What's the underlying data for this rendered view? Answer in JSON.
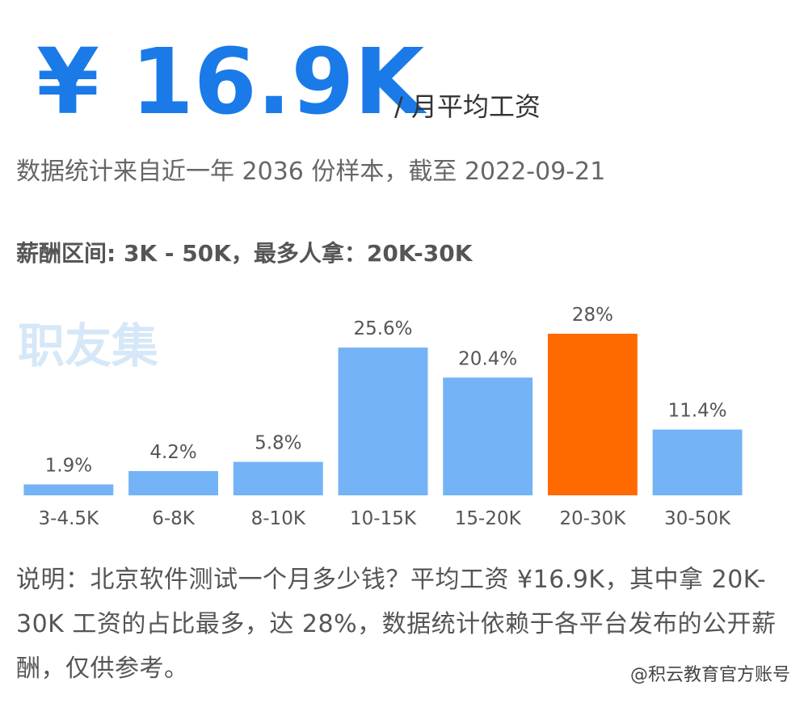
{
  "header": {
    "price": "¥ 16.9K",
    "unit": "/ 月平均工资"
  },
  "subtitle": "数据统计来自近一年 2036 份样本，截至 2022-09-21",
  "range_line": "薪酬区间: 3K - 50K，最多人拿：20K-30K",
  "watermark": "职友集",
  "chart_data": {
    "type": "bar",
    "categories": [
      "3-4.5K",
      "6-8K",
      "8-10K",
      "10-15K",
      "15-20K",
      "20-30K",
      "30-50K"
    ],
    "values": [
      1.9,
      4.2,
      5.8,
      25.6,
      20.4,
      28,
      11.4
    ],
    "value_labels": [
      "1.9%",
      "4.2%",
      "5.8%",
      "25.6%",
      "20.4%",
      "28%",
      "11.4%"
    ],
    "colors": [
      "#74b3f5",
      "#74b3f5",
      "#74b3f5",
      "#74b3f5",
      "#74b3f5",
      "#ff6a00",
      "#74b3f5"
    ]
  },
  "description": "说明：北京软件测试一个月多少钱？平均工资 ¥16.9K，其中拿 20K-30K 工资的占比最多，达 28%，数据统计依赖于各平台发布的公开薪酬，仅供参考。",
  "footer": "@积云教育官方账号"
}
